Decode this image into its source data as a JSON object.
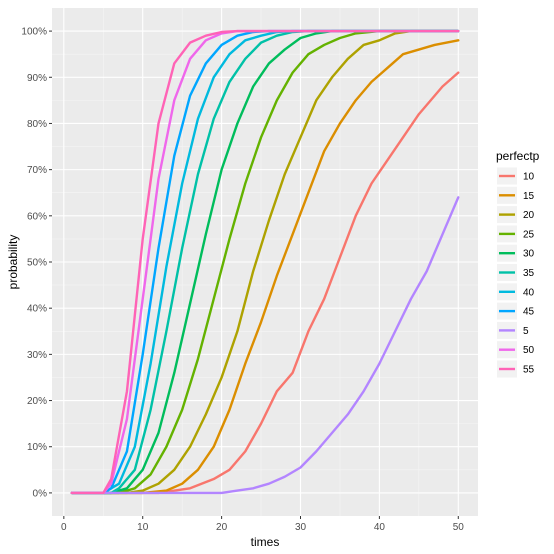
{
  "chart_data": {
    "type": "line",
    "xlabel": "times",
    "ylabel": "probability",
    "xlim": [
      -1.5,
      52.5
    ],
    "ylim": [
      -0.05,
      1.05
    ],
    "x_ticks": [
      0,
      10,
      20,
      30,
      40,
      50
    ],
    "x_tick_labels": [
      "0",
      "10",
      "20",
      "30",
      "40",
      "50"
    ],
    "y_ticks": [
      0,
      0.1,
      0.2,
      0.3,
      0.4,
      0.5,
      0.6,
      0.7,
      0.8,
      0.9,
      1.0
    ],
    "y_tick_labels": [
      "0%",
      "10%",
      "20%",
      "30%",
      "40%",
      "50%",
      "60%",
      "70%",
      "80%",
      "90%",
      "100%"
    ],
    "grid": true,
    "background": "#ebebeb",
    "legend": {
      "title": "perfectp",
      "placement": "right"
    },
    "series": [
      {
        "name": "10",
        "color": "#F8766D",
        "points": [
          [
            1,
            0
          ],
          [
            12,
            0
          ],
          [
            16,
            0.01
          ],
          [
            19,
            0.03
          ],
          [
            21,
            0.05
          ],
          [
            23,
            0.09
          ],
          [
            25,
            0.15
          ],
          [
            27,
            0.22
          ],
          [
            29,
            0.26
          ],
          [
            31,
            0.35
          ],
          [
            33,
            0.42
          ],
          [
            35,
            0.51
          ],
          [
            37,
            0.6
          ],
          [
            39,
            0.67
          ],
          [
            41,
            0.72
          ],
          [
            43,
            0.77
          ],
          [
            45,
            0.82
          ],
          [
            47,
            0.86
          ],
          [
            48,
            0.88
          ],
          [
            50,
            0.91
          ]
        ]
      },
      {
        "name": "15",
        "color": "#DB8E00",
        "points": [
          [
            1,
            0
          ],
          [
            10,
            0
          ],
          [
            13,
            0.005
          ],
          [
            15,
            0.02
          ],
          [
            17,
            0.05
          ],
          [
            19,
            0.1
          ],
          [
            21,
            0.18
          ],
          [
            23,
            0.28
          ],
          [
            25,
            0.37
          ],
          [
            27,
            0.47
          ],
          [
            29,
            0.56
          ],
          [
            31,
            0.65
          ],
          [
            33,
            0.74
          ],
          [
            35,
            0.8
          ],
          [
            37,
            0.85
          ],
          [
            39,
            0.89
          ],
          [
            41,
            0.92
          ],
          [
            43,
            0.95
          ],
          [
            45,
            0.96
          ],
          [
            47,
            0.97
          ],
          [
            50,
            0.98
          ]
        ]
      },
      {
        "name": "20",
        "color": "#AEA200",
        "points": [
          [
            1,
            0
          ],
          [
            8,
            0
          ],
          [
            10,
            0.005
          ],
          [
            12,
            0.02
          ],
          [
            14,
            0.05
          ],
          [
            16,
            0.1
          ],
          [
            18,
            0.17
          ],
          [
            20,
            0.25
          ],
          [
            22,
            0.35
          ],
          [
            24,
            0.48
          ],
          [
            26,
            0.59
          ],
          [
            28,
            0.69
          ],
          [
            30,
            0.77
          ],
          [
            32,
            0.85
          ],
          [
            34,
            0.9
          ],
          [
            36,
            0.94
          ],
          [
            38,
            0.97
          ],
          [
            40,
            0.98
          ],
          [
            42,
            0.995
          ],
          [
            44,
            1.0
          ],
          [
            50,
            1.0
          ]
        ]
      },
      {
        "name": "25",
        "color": "#64B200",
        "points": [
          [
            1,
            0
          ],
          [
            7,
            0
          ],
          [
            9,
            0.01
          ],
          [
            11,
            0.04
          ],
          [
            13,
            0.1
          ],
          [
            15,
            0.18
          ],
          [
            17,
            0.29
          ],
          [
            19,
            0.42
          ],
          [
            21,
            0.55
          ],
          [
            23,
            0.67
          ],
          [
            25,
            0.77
          ],
          [
            27,
            0.85
          ],
          [
            29,
            0.91
          ],
          [
            31,
            0.95
          ],
          [
            33,
            0.97
          ],
          [
            35,
            0.985
          ],
          [
            37,
            0.995
          ],
          [
            40,
            1.0
          ],
          [
            50,
            1.0
          ]
        ]
      },
      {
        "name": "30",
        "color": "#00BD5C",
        "points": [
          [
            1,
            0
          ],
          [
            6,
            0
          ],
          [
            8,
            0.01
          ],
          [
            10,
            0.05
          ],
          [
            12,
            0.13
          ],
          [
            14,
            0.26
          ],
          [
            16,
            0.41
          ],
          [
            18,
            0.56
          ],
          [
            20,
            0.7
          ],
          [
            22,
            0.8
          ],
          [
            24,
            0.88
          ],
          [
            26,
            0.93
          ],
          [
            28,
            0.96
          ],
          [
            30,
            0.985
          ],
          [
            32,
            0.995
          ],
          [
            34,
            1.0
          ],
          [
            50,
            1.0
          ]
        ]
      },
      {
        "name": "35",
        "color": "#00C1A7",
        "points": [
          [
            1,
            0
          ],
          [
            6,
            0
          ],
          [
            7,
            0.01
          ],
          [
            9,
            0.05
          ],
          [
            11,
            0.18
          ],
          [
            13,
            0.35
          ],
          [
            15,
            0.53
          ],
          [
            17,
            0.69
          ],
          [
            19,
            0.81
          ],
          [
            21,
            0.89
          ],
          [
            23,
            0.94
          ],
          [
            25,
            0.975
          ],
          [
            27,
            0.99
          ],
          [
            29,
            0.998
          ],
          [
            31,
            1.0
          ],
          [
            50,
            1.0
          ]
        ]
      },
      {
        "name": "40",
        "color": "#00BADE",
        "points": [
          [
            1,
            0
          ],
          [
            5,
            0
          ],
          [
            7,
            0.02
          ],
          [
            9,
            0.1
          ],
          [
            11,
            0.28
          ],
          [
            13,
            0.49
          ],
          [
            15,
            0.67
          ],
          [
            17,
            0.81
          ],
          [
            19,
            0.9
          ],
          [
            21,
            0.95
          ],
          [
            23,
            0.98
          ],
          [
            25,
            0.99
          ],
          [
            27,
            0.998
          ],
          [
            29,
            1.0
          ],
          [
            50,
            1.0
          ]
        ]
      },
      {
        "name": "45",
        "color": "#00A6FF",
        "points": [
          [
            1,
            0
          ],
          [
            5,
            0
          ],
          [
            6,
            0.01
          ],
          [
            8,
            0.09
          ],
          [
            10,
            0.3
          ],
          [
            12,
            0.53
          ],
          [
            14,
            0.73
          ],
          [
            16,
            0.86
          ],
          [
            18,
            0.93
          ],
          [
            20,
            0.97
          ],
          [
            22,
            0.99
          ],
          [
            24,
            0.998
          ],
          [
            26,
            1.0
          ],
          [
            50,
            1.0
          ]
        ]
      },
      {
        "name": "5",
        "color": "#B385FF",
        "points": [
          [
            1,
            0
          ],
          [
            20,
            0
          ],
          [
            22,
            0.005
          ],
          [
            24,
            0.01
          ],
          [
            26,
            0.02
          ],
          [
            28,
            0.035
          ],
          [
            30,
            0.055
          ],
          [
            32,
            0.09
          ],
          [
            34,
            0.13
          ],
          [
            36,
            0.17
          ],
          [
            38,
            0.22
          ],
          [
            40,
            0.28
          ],
          [
            42,
            0.35
          ],
          [
            44,
            0.42
          ],
          [
            46,
            0.48
          ],
          [
            48,
            0.56
          ],
          [
            50,
            0.64
          ]
        ]
      },
      {
        "name": "50",
        "color": "#EF67EB",
        "points": [
          [
            1,
            0
          ],
          [
            5,
            0
          ],
          [
            6,
            0.02
          ],
          [
            8,
            0.16
          ],
          [
            10,
            0.42
          ],
          [
            12,
            0.68
          ],
          [
            14,
            0.85
          ],
          [
            16,
            0.94
          ],
          [
            18,
            0.98
          ],
          [
            20,
            0.995
          ],
          [
            22,
            1.0
          ],
          [
            50,
            1.0
          ]
        ]
      },
      {
        "name": "55",
        "color": "#FF63B6",
        "points": [
          [
            1,
            0
          ],
          [
            5,
            0
          ],
          [
            6,
            0.03
          ],
          [
            8,
            0.22
          ],
          [
            10,
            0.55
          ],
          [
            12,
            0.8
          ],
          [
            14,
            0.93
          ],
          [
            16,
            0.975
          ],
          [
            18,
            0.99
          ],
          [
            20,
            0.998
          ],
          [
            22,
            1.0
          ],
          [
            50,
            1.0
          ]
        ]
      }
    ]
  }
}
